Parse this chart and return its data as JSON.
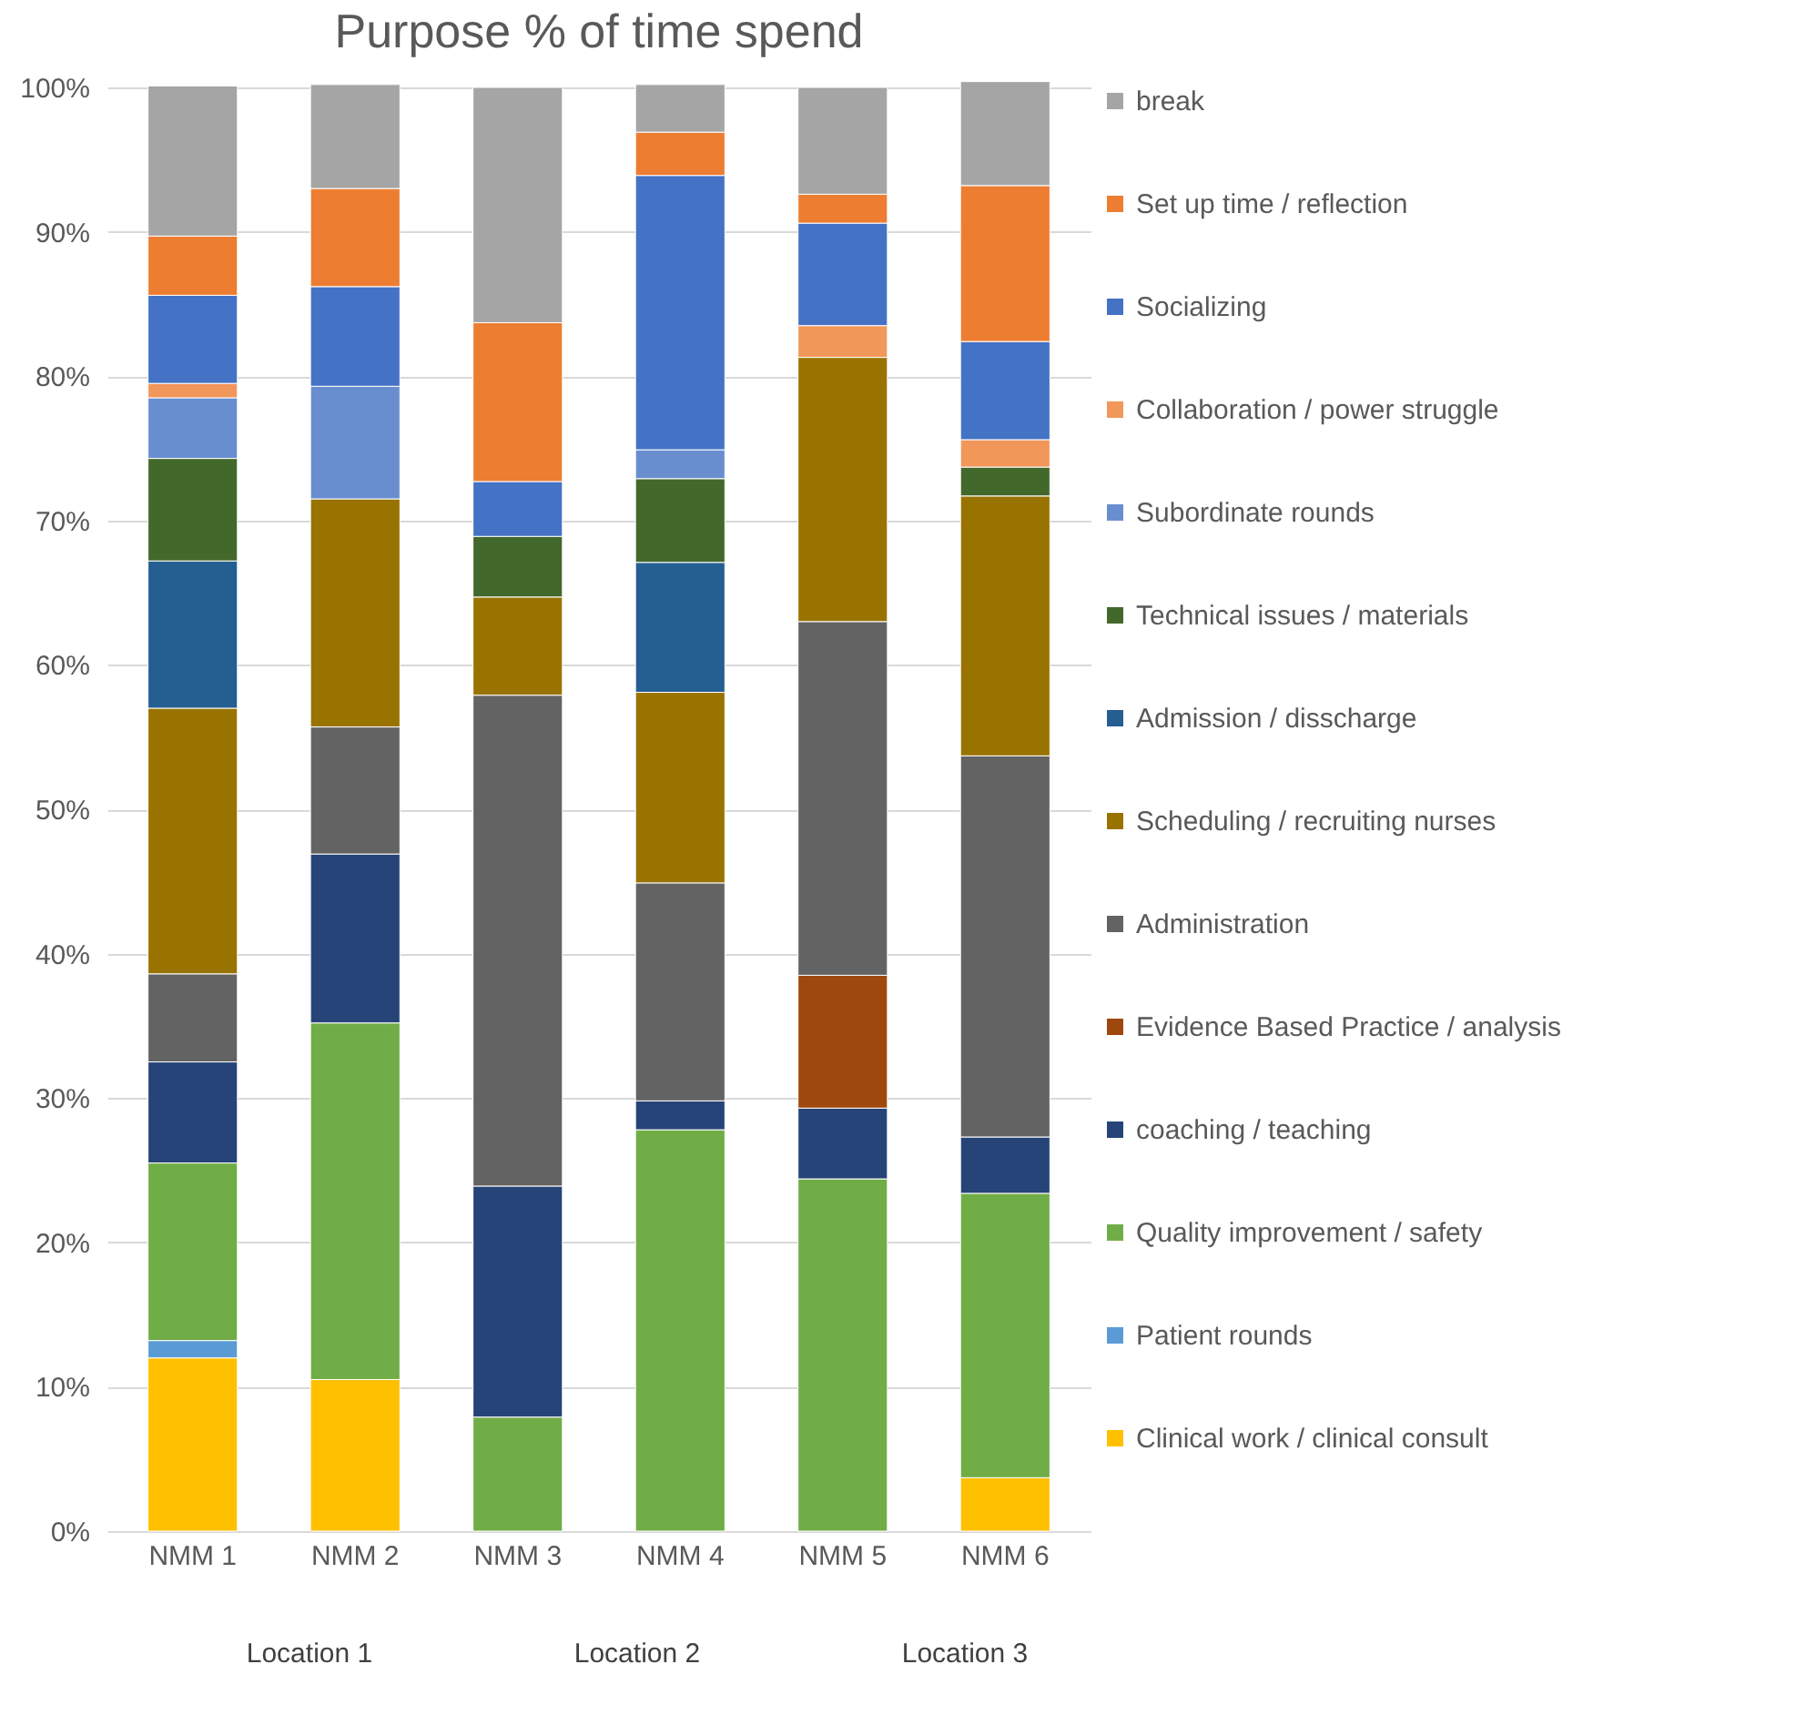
{
  "chart_data": {
    "type": "bar",
    "title": "Purpose % of time spend",
    "stacked": true,
    "categories": [
      "NMM 1",
      "NMM 2",
      "NMM 3",
      "NMM 4",
      "NMM 5",
      "NMM 6"
    ],
    "ylim": [
      0,
      100
    ],
    "yticks": [
      {
        "value": 0,
        "label": "0%"
      },
      {
        "value": 10,
        "label": "10%"
      },
      {
        "value": 20,
        "label": "20%"
      },
      {
        "value": 30,
        "label": "30%"
      },
      {
        "value": 40,
        "label": "40%"
      },
      {
        "value": 50,
        "label": "50%"
      },
      {
        "value": 60,
        "label": "60%"
      },
      {
        "value": 70,
        "label": "70%"
      },
      {
        "value": 80,
        "label": "80%"
      },
      {
        "value": 90,
        "label": "90%"
      },
      {
        "value": 100,
        "label": "100%"
      }
    ],
    "grid": "y",
    "legend": "right",
    "annotations": [
      "Location 1",
      "Location 2",
      "Location 3"
    ],
    "series": [
      {
        "name": "Clinical work / clinical consult",
        "color": "#ffc000",
        "values": [
          12.0,
          10.5,
          null,
          null,
          null,
          3.7
        ]
      },
      {
        "name": "Patient rounds",
        "color": "#5b9bd5",
        "values": [
          1.2,
          null,
          null,
          null,
          null,
          null
        ]
      },
      {
        "name": "Quality improvement / safety",
        "color": "#70ad47",
        "values": [
          12.3,
          24.7,
          7.9,
          27.8,
          24.4,
          19.7
        ]
      },
      {
        "name": "coaching / teaching",
        "color": "#264478",
        "values": [
          7.0,
          11.7,
          16.0,
          2.0,
          4.9,
          3.9
        ]
      },
      {
        "name": "Evidence Based Practice / analysis",
        "color": "#9e480e",
        "values": [
          null,
          null,
          null,
          null,
          9.2,
          null
        ]
      },
      {
        "name": "Administration",
        "color": "#636363",
        "values": [
          6.1,
          8.8,
          34.0,
          15.1,
          24.5,
          26.4
        ]
      },
      {
        "name": "Scheduling / recruiting nurses",
        "color": "#997300",
        "values": [
          18.4,
          15.8,
          6.8,
          13.2,
          18.3,
          18.0
        ]
      },
      {
        "name": "Admission / disscharge",
        "color": "#255e91",
        "values": [
          10.2,
          null,
          null,
          9.0,
          null,
          null
        ]
      },
      {
        "name": "Technical issues / materials",
        "color": "#43682b",
        "values": [
          7.1,
          null,
          4.2,
          5.8,
          null,
          2.0
        ]
      },
      {
        "name": "Subordinate rounds",
        "color": "#698ed0",
        "values": [
          4.2,
          7.8,
          null,
          2.0,
          null,
          null
        ]
      },
      {
        "name": "Collaboration / power struggle",
        "color": "#f1975a",
        "values": [
          1.0,
          null,
          null,
          null,
          2.2,
          1.9
        ]
      },
      {
        "name": "Socializing",
        "color": "#4472c4",
        "values": [
          6.1,
          6.9,
          3.8,
          19.0,
          7.1,
          6.8
        ]
      },
      {
        "name": "Set up time / reflection",
        "color": "#ed7d31",
        "values": [
          4.1,
          6.8,
          11.0,
          3.0,
          2.0,
          10.8
        ]
      },
      {
        "name": "break",
        "color": "#a5a5a5",
        "values": [
          10.4,
          7.2,
          16.3,
          3.3,
          7.4,
          7.2
        ]
      }
    ]
  }
}
